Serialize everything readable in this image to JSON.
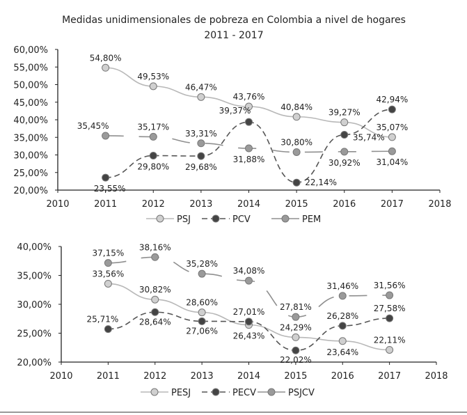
{
  "chart_data": [
    {
      "type": "line",
      "title": "Medidas unidimensionales de pobreza en Colombia a nivel de hogares",
      "subtitle": "2011 - 2017",
      "x": [
        2011,
        2012,
        2013,
        2014,
        2015,
        2016,
        2017
      ],
      "xlim": [
        2010,
        2018
      ],
      "xticks": [
        "2010",
        "2011",
        "2012",
        "2013",
        "2014",
        "2015",
        "2016",
        "2017",
        "2018"
      ],
      "ylim": [
        20,
        60
      ],
      "yticks": [
        "20,00%",
        "25,00%",
        "30,00%",
        "35,00%",
        "40,00%",
        "45,00%",
        "50,00%",
        "55,00%",
        "60,00%"
      ],
      "legend_position": "bottom",
      "series": [
        {
          "name": "PSJ",
          "values": [
            54.8,
            49.53,
            46.47,
            43.76,
            40.84,
            39.27,
            35.07
          ],
          "labels": [
            "54,80%",
            "49,53%",
            "46,47%",
            "43,76%",
            "40,84%",
            "39,27%",
            "35,07%"
          ],
          "color": "#b8b8b8",
          "style": "solid"
        },
        {
          "name": "PCV",
          "values": [
            23.55,
            29.8,
            29.68,
            39.37,
            22.14,
            35.74,
            42.94
          ],
          "labels": [
            "23,55%",
            "29,80%",
            "29,68%",
            "39,37%",
            "22,14%",
            "35,74%",
            "42,94%"
          ],
          "color": "#555555",
          "style": "dashed"
        },
        {
          "name": "PEM",
          "values": [
            35.45,
            35.17,
            33.31,
            31.88,
            30.8,
            30.92,
            31.04
          ],
          "labels": [
            "35,45%",
            "35,17%",
            "33,31%",
            "31,88%",
            "30,80%",
            "30,92%",
            "31,04%"
          ],
          "color": "#8f8f8f",
          "style": "long-dash"
        }
      ]
    },
    {
      "type": "line",
      "x": [
        2011,
        2012,
        2013,
        2014,
        2015,
        2016,
        2017
      ],
      "xlim": [
        2010,
        2018
      ],
      "xticks": [
        "2010",
        "2011",
        "2012",
        "2013",
        "2014",
        "2015",
        "2016",
        "2017",
        "2018"
      ],
      "ylim": [
        20,
        40
      ],
      "yticks": [
        "20,00%",
        "25,00%",
        "30,00%",
        "35,00%",
        "40,00%"
      ],
      "legend_position": "bottom",
      "series": [
        {
          "name": "PESJ",
          "values": [
            33.56,
            30.82,
            28.6,
            26.43,
            24.29,
            23.64,
            22.11
          ],
          "labels": [
            "33,56%",
            "30,82%",
            "28,60%",
            "26,43%",
            "24,29%",
            "23,64%",
            "22,11%"
          ],
          "color": "#b8b8b8",
          "style": "solid"
        },
        {
          "name": "PECV",
          "values": [
            25.71,
            28.64,
            27.06,
            27.01,
            22.02,
            26.28,
            27.58
          ],
          "labels": [
            "25,71%",
            "28,64%",
            "27,06%",
            "27,01%",
            "22,02%",
            "26,28%",
            "27,58%"
          ],
          "color": "#555555",
          "style": "dashed"
        },
        {
          "name": "PSJCV",
          "values": [
            37.15,
            38.16,
            35.28,
            34.08,
            27.81,
            31.46,
            31.56
          ],
          "labels": [
            "37,15%",
            "38,16%",
            "35,28%",
            "34,08%",
            "27,81%",
            "31,46%",
            "31,56%"
          ],
          "color": "#8f8f8f",
          "style": "long-dash"
        }
      ]
    }
  ]
}
